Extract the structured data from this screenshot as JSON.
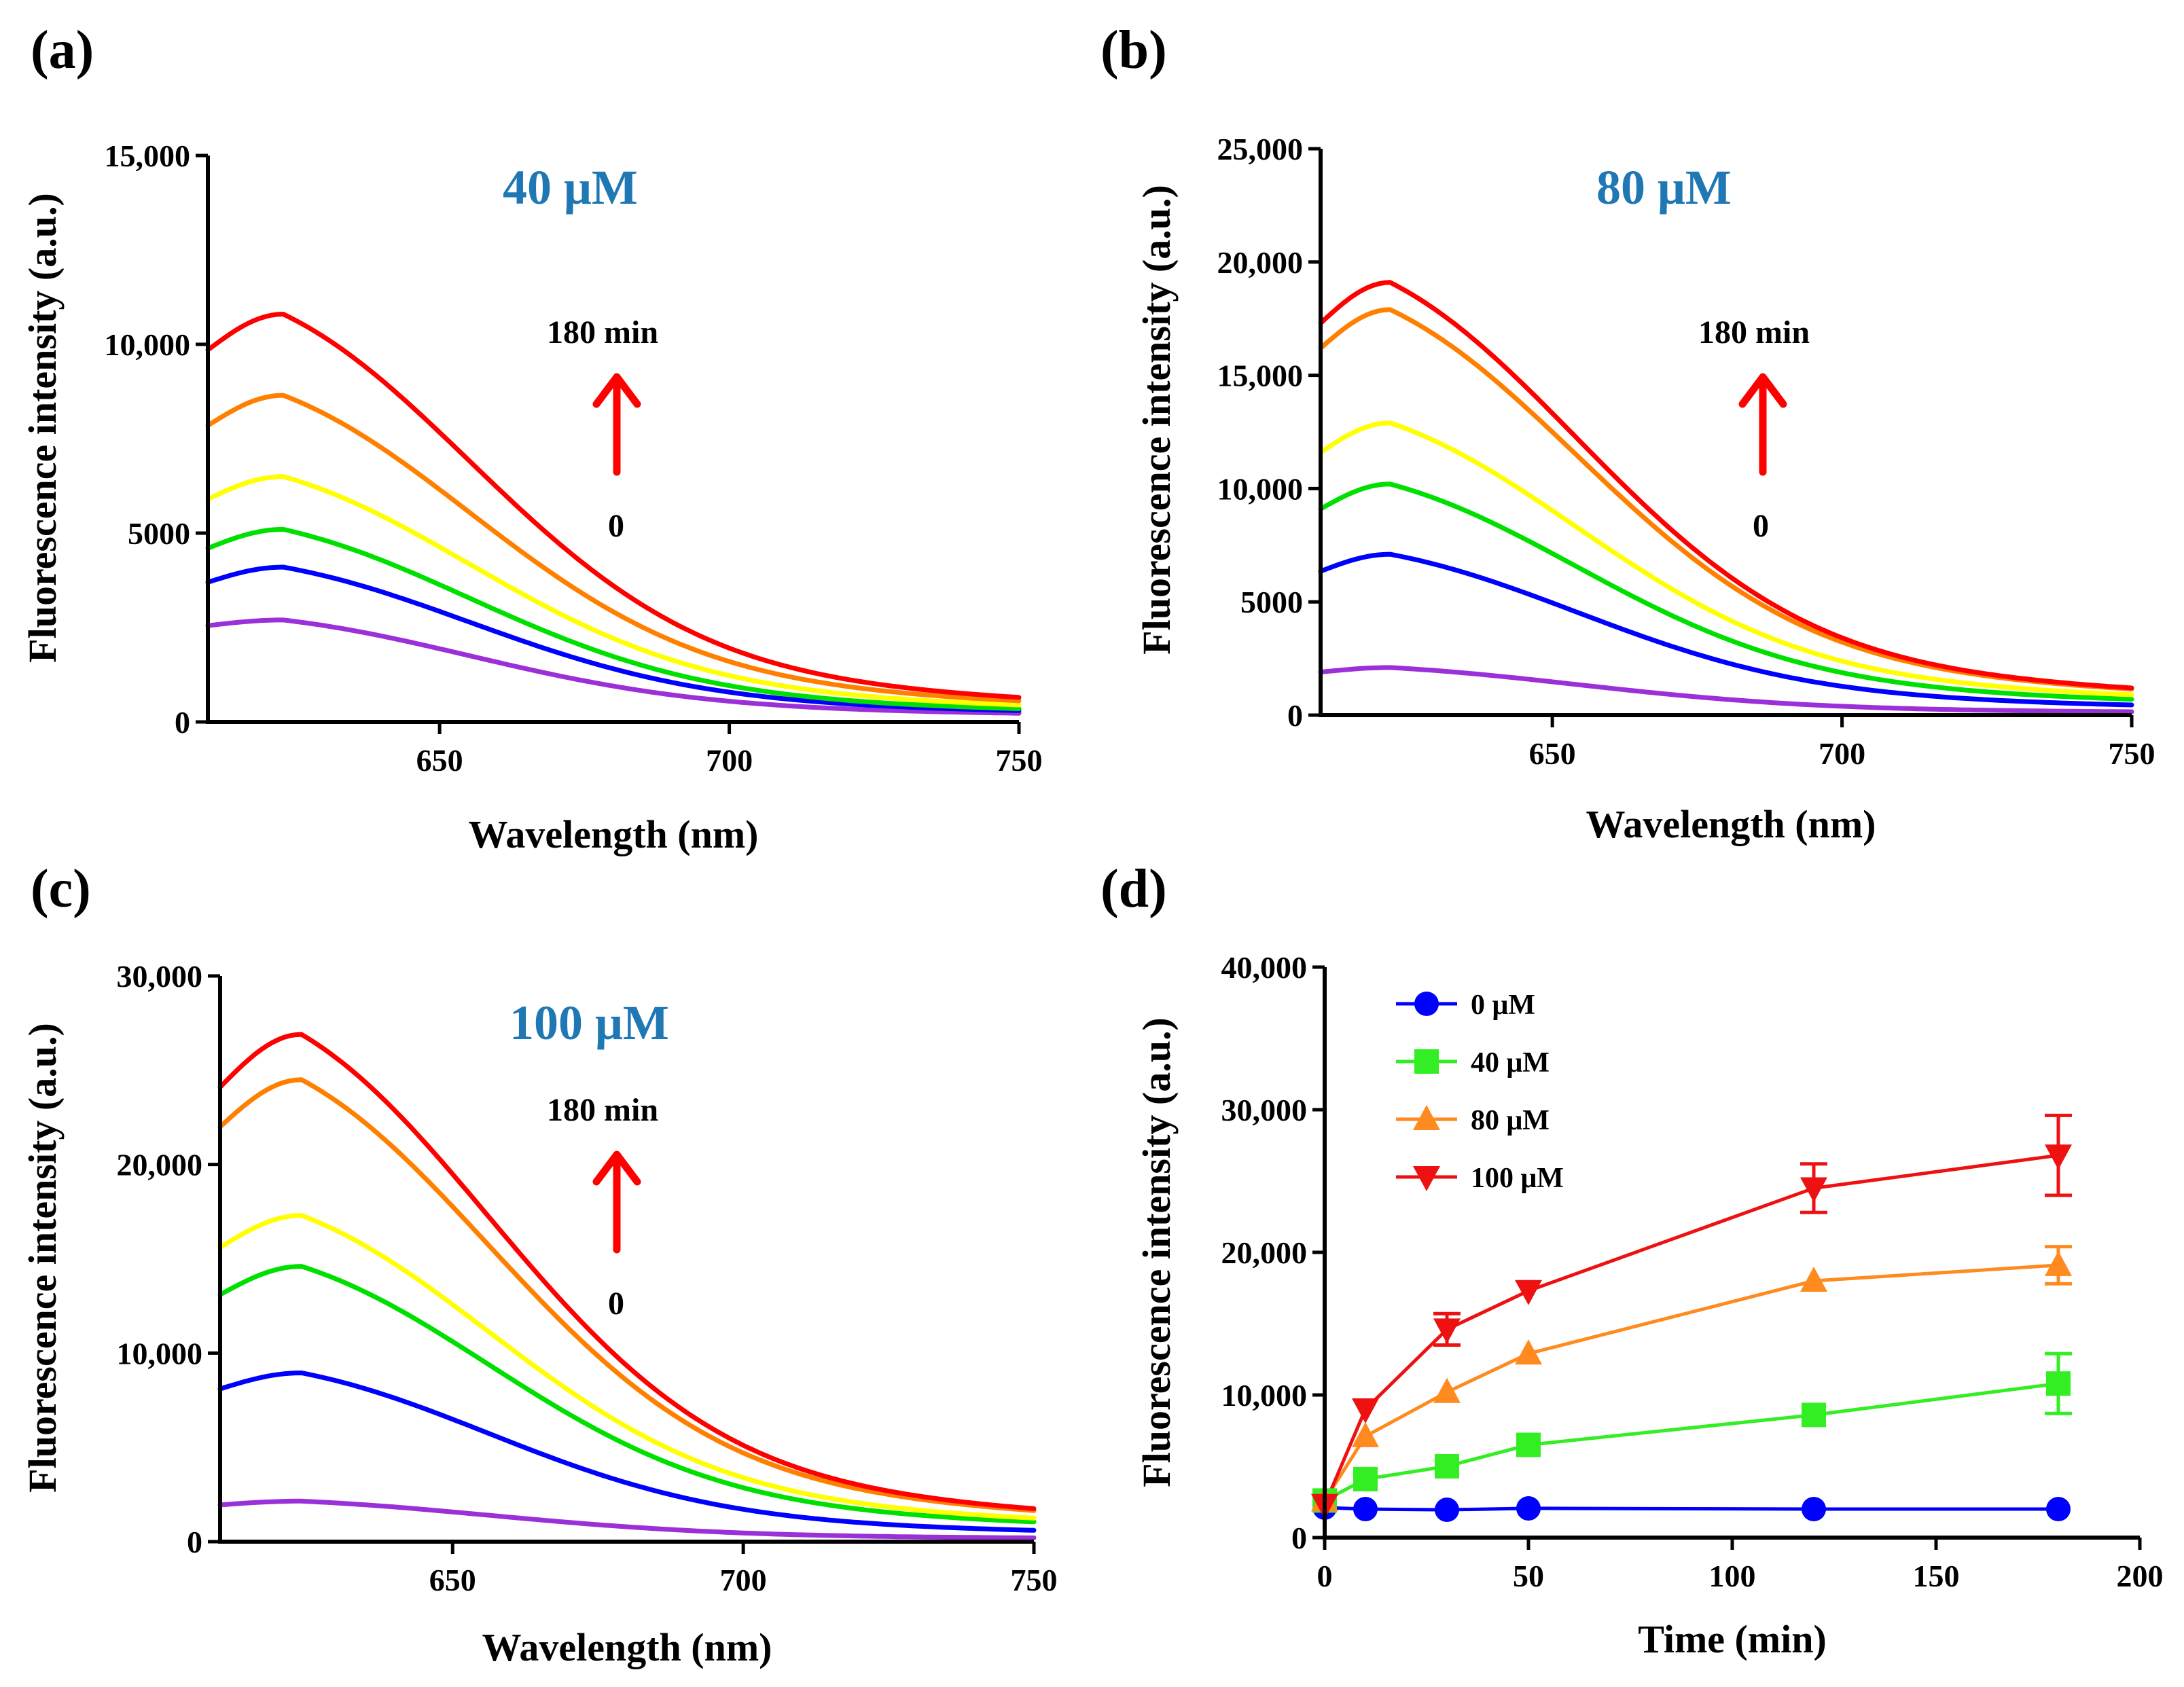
{
  "chart_data": [
    {
      "type": "line",
      "panel_label": "(a)",
      "concentration_label": "40 μM",
      "annotation_top": "180 min",
      "annotation_bottom": "0",
      "annotation_arrow_color": "#ff0000",
      "xlabel": "Wavelength (nm)",
      "ylabel": "Fluorescence intensity (a.u.)",
      "xlim": [
        610,
        750
      ],
      "ylim": [
        0,
        15000
      ],
      "xticks": [
        650,
        700,
        750
      ],
      "xtick_labels": [
        "650",
        "700",
        "750"
      ],
      "yticks": [
        0,
        5000,
        10000,
        15000
      ],
      "ytick_labels": [
        "0",
        "5000",
        "10,000",
        "15,000"
      ],
      "peak_nm": 623,
      "series": [
        {
          "color": "#9b30d9",
          "start": 2550,
          "peak": 2700,
          "end": 230
        },
        {
          "color": "#0000ff",
          "start": 3700,
          "peak": 4100,
          "end": 300
        },
        {
          "color": "#00e000",
          "start": 4600,
          "peak": 5100,
          "end": 350
        },
        {
          "color": "#ffff00",
          "start": 5900,
          "peak": 6500,
          "end": 450
        },
        {
          "color": "#ff8000",
          "start": 7850,
          "peak": 8650,
          "end": 560
        },
        {
          "color": "#ff0000",
          "start": 9850,
          "peak": 10800,
          "end": 650
        }
      ]
    },
    {
      "type": "line",
      "panel_label": "(b)",
      "concentration_label": "80 μM",
      "annotation_top": "180 min",
      "annotation_bottom": "0",
      "annotation_arrow_color": "#ff0000",
      "xlabel": "Wavelength (nm)",
      "ylabel": "Fluorescence intensity (a.u.)",
      "xlim": [
        610,
        750
      ],
      "ylim": [
        0,
        25000
      ],
      "xticks": [
        650,
        700,
        750
      ],
      "xtick_labels": [
        "650",
        "700",
        "750"
      ],
      "yticks": [
        0,
        5000,
        10000,
        15000,
        20000,
        25000
      ],
      "ytick_labels": [
        "0",
        "5000",
        "10,000",
        "15,000",
        "20,000",
        "25,000"
      ],
      "peak_nm": 622,
      "series": [
        {
          "color": "#9b30d9",
          "start": 1900,
          "peak": 2100,
          "end": 150
        },
        {
          "color": "#0000ff",
          "start": 6350,
          "peak": 7100,
          "end": 450
        },
        {
          "color": "#00e000",
          "start": 9100,
          "peak": 10200,
          "end": 700
        },
        {
          "color": "#ffff00",
          "start": 11600,
          "peak": 12900,
          "end": 900
        },
        {
          "color": "#ff8000",
          "start": 16200,
          "peak": 17900,
          "end": 1150
        },
        {
          "color": "#ff0000",
          "start": 17300,
          "peak": 19100,
          "end": 1200
        }
      ]
    },
    {
      "type": "line",
      "panel_label": "(c)",
      "concentration_label": "100 μM",
      "annotation_top": "180 min",
      "annotation_bottom": "0",
      "annotation_arrow_color": "#ff0000",
      "xlabel": "Wavelength (nm)",
      "ylabel": "Fluorescence intensity (a.u.)",
      "xlim": [
        610,
        750
      ],
      "ylim": [
        0,
        30000
      ],
      "xticks": [
        650,
        700,
        750
      ],
      "xtick_labels": [
        "650",
        "700",
        "750"
      ],
      "yticks": [
        0,
        10000,
        20000,
        30000
      ],
      "ytick_labels": [
        "0",
        "10,000",
        "20,000",
        "30,000"
      ],
      "peak_nm": 624,
      "series": [
        {
          "color": "#9b30d9",
          "start": 1950,
          "peak": 2150,
          "end": 200
        },
        {
          "color": "#0000ff",
          "start": 8100,
          "peak": 8950,
          "end": 600
        },
        {
          "color": "#00e000",
          "start": 13100,
          "peak": 14600,
          "end": 1050
        },
        {
          "color": "#ffff00",
          "start": 15600,
          "peak": 17300,
          "end": 1250
        },
        {
          "color": "#ff8000",
          "start": 22000,
          "peak": 24500,
          "end": 1650
        },
        {
          "color": "#ff0000",
          "start": 24100,
          "peak": 26900,
          "end": 1750
        }
      ]
    },
    {
      "type": "line",
      "panel_label": "(d)",
      "xlabel": "Time (min)",
      "ylabel": "Fluorescence intensity (a.u.)",
      "xlim": [
        0,
        200
      ],
      "ylim": [
        0,
        40000
      ],
      "xticks": [
        0,
        50,
        100,
        150,
        200
      ],
      "xtick_labels": [
        "0",
        "50",
        "100",
        "150",
        "200"
      ],
      "yticks": [
        0,
        10000,
        20000,
        30000,
        40000
      ],
      "ytick_labels": [
        "0",
        "10,000",
        "20,000",
        "30,000",
        "40,000"
      ],
      "legend_position": "top-left",
      "x": [
        0,
        10,
        30,
        50,
        120,
        180
      ],
      "series": [
        {
          "name": "0 μM",
          "color": "#0000ff",
          "marker": "circle",
          "values": [
            2100,
            2000,
            1950,
            2050,
            2000,
            2000
          ],
          "errors": [
            0,
            0,
            0,
            0,
            0,
            0
          ]
        },
        {
          "name": "40 μM",
          "color": "#33ee22",
          "marker": "square",
          "values": [
            2600,
            4100,
            5000,
            6500,
            8600,
            10800
          ],
          "errors": [
            0,
            0,
            0,
            0,
            0,
            2100
          ]
        },
        {
          "name": "80 μM",
          "color": "#ff8a1f",
          "marker": "triangle-up",
          "values": [
            2600,
            7100,
            10200,
            12900,
            18000,
            19100
          ],
          "errors": [
            0,
            0,
            0,
            0,
            0,
            1300
          ]
        },
        {
          "name": "100 μM",
          "color": "#ee1111",
          "marker": "triangle-down",
          "values": [
            2300,
            9000,
            14600,
            17300,
            24500,
            26800
          ],
          "errors": [
            0,
            0,
            1100,
            0,
            1700,
            2800
          ]
        }
      ]
    }
  ]
}
